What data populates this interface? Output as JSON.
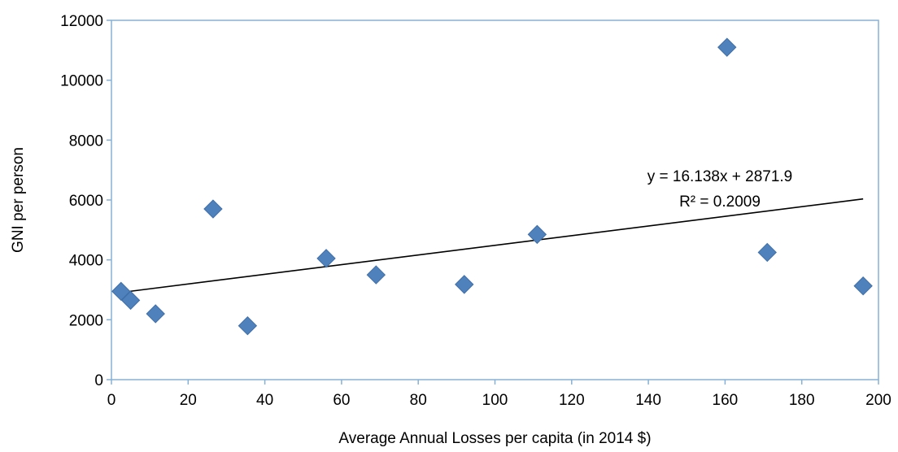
{
  "chart_data": {
    "type": "scatter",
    "title": "",
    "xlabel": "Average Annual Losses per capita (in 2014 $)",
    "ylabel": "GNI per person",
    "xlim": [
      0,
      200
    ],
    "ylim": [
      0,
      12000
    ],
    "x_ticks": [
      0,
      20,
      40,
      60,
      80,
      100,
      120,
      140,
      160,
      180,
      200
    ],
    "y_ticks": [
      0,
      2000,
      4000,
      6000,
      8000,
      10000,
      12000
    ],
    "grid": false,
    "legend": "none",
    "marker": "diamond",
    "marker_color": "#4f81bd",
    "series": [
      {
        "x": [
          2.5,
          5,
          11.5,
          26.5,
          35.5,
          56,
          69,
          92,
          111,
          160.5,
          171,
          196
        ],
        "y": [
          2950,
          2650,
          2200,
          5700,
          1800,
          4050,
          3500,
          3180,
          4850,
          11100,
          4250,
          3130
        ]
      }
    ],
    "trendline": {
      "type": "linear",
      "slope": 16.138,
      "intercept": 2871.9,
      "x_range": [
        2.5,
        196
      ],
      "color": "#000000",
      "equation": "y = 16.138x + 2871.9",
      "r_squared": "R² = 0.2009"
    }
  }
}
